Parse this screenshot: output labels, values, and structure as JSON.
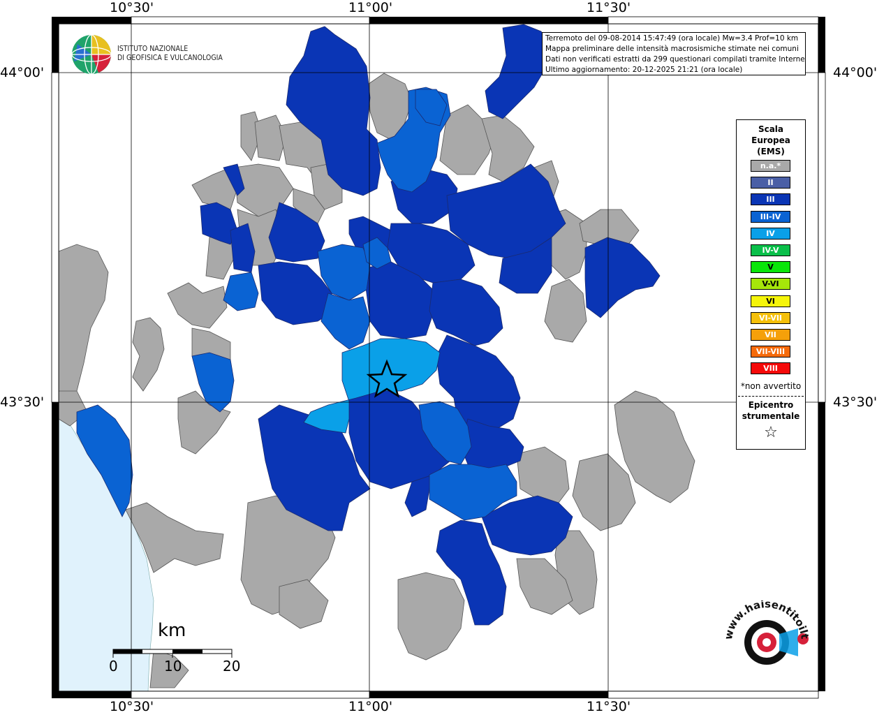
{
  "map": {
    "grid_labels_top": [
      "10°30'",
      "11°00'",
      "11°30'"
    ],
    "grid_labels_bottom": [
      "10°30'",
      "11°00'",
      "11°30'"
    ],
    "grid_labels_left": [
      "44°00'",
      "43°30'"
    ],
    "grid_labels_right": [
      "44°00'",
      "43°30'"
    ]
  },
  "header": {
    "logo_line1": "ISTITUTO NAZIONALE",
    "logo_line2": "DI GEOFISICA E VULCANOLOGIA"
  },
  "info": {
    "line1": "Terremoto del 09-08-2014 15:47:49 (ora locale) Mw=3.4 Prof=10 km",
    "line2": "Mappa preliminare delle intensità macrosismiche stimate nei comuni",
    "line3": "Dati non verificati estratti da 299 questionari compilati tramite Internet.",
    "line4": "Ultimo aggiornamento: 20-12-2025 21:21 (ora locale)"
  },
  "legend": {
    "title1": "Scala",
    "title2": "Europea",
    "title3": "(EMS)",
    "items": [
      {
        "label": "n.a.*",
        "color": "#a9a9a9"
      },
      {
        "label": "II",
        "color": "#4a5fa6"
      },
      {
        "label": "III",
        "color": "#0a35b5"
      },
      {
        "label": "III-IV",
        "color": "#0a63d3"
      },
      {
        "label": "IV",
        "color": "#0aa0e8"
      },
      {
        "label": "IV-V",
        "color": "#0abf4a"
      },
      {
        "label": "V",
        "color": "#0ae60a"
      },
      {
        "label": "V-VI",
        "color": "#a6e60a"
      },
      {
        "label": "VI",
        "color": "#f5f50a"
      },
      {
        "label": "VI-VII",
        "color": "#f5c00a"
      },
      {
        "label": "VII",
        "color": "#f5a00a"
      },
      {
        "label": "VII-VIII",
        "color": "#f56a0a"
      },
      {
        "label": "VIII",
        "color": "#f50a0a"
      }
    ],
    "note": "*non avvertito",
    "epicenter1": "Epicentro",
    "epicenter2": "strumentale",
    "star": "☆"
  },
  "scale": {
    "unit": "km",
    "ticks": [
      "0",
      "10",
      "20"
    ]
  },
  "hsit": {
    "text": "www.haisentitoilterremoto.it"
  },
  "colors": {
    "na": "#a9a9a9",
    "iii": "#0a35b5",
    "iii_iv": "#0a63d3",
    "iv": "#0aa0e8",
    "sea": "#e0f2fc"
  }
}
